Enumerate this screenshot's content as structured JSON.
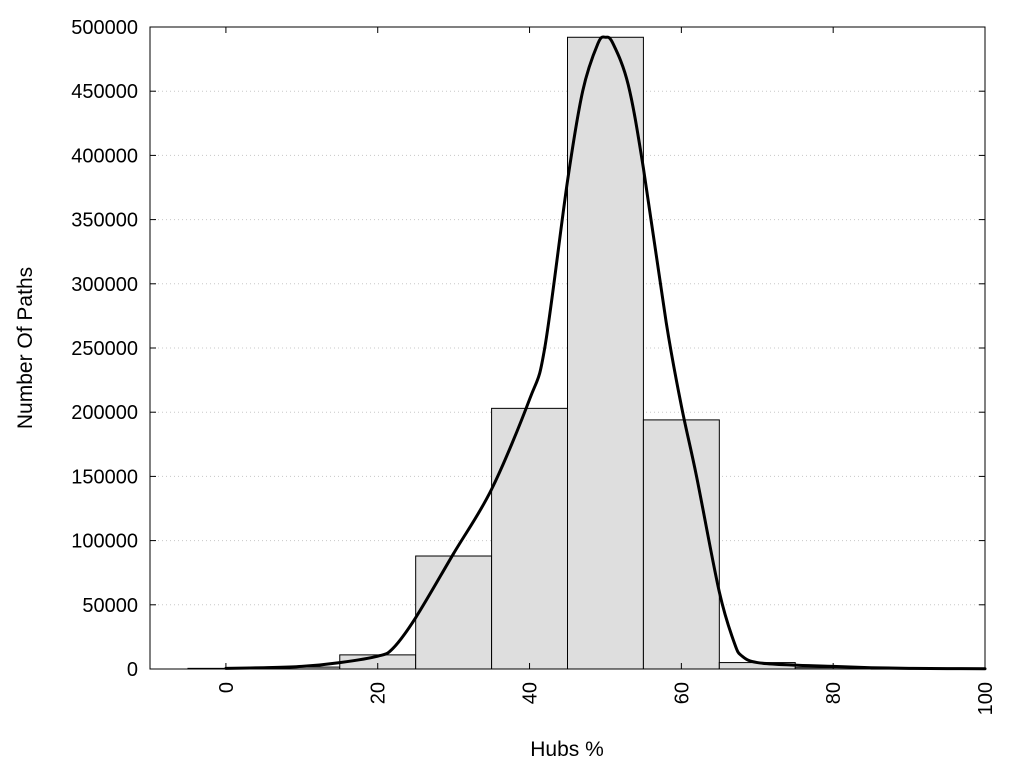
{
  "chart_data": {
    "type": "bar",
    "title": "",
    "xlabel": "Hubs %",
    "ylabel": "Number Of Paths",
    "xlim": [
      -10,
      100
    ],
    "ylim": [
      0,
      500000
    ],
    "x_ticks": [
      "0",
      "20",
      "40",
      "60",
      "80",
      "100"
    ],
    "y_ticks": [
      "0",
      "50000",
      "100000",
      "150000",
      "200000",
      "250000",
      "300000",
      "350000",
      "400000",
      "450000",
      "500000"
    ],
    "grid": "horizontal dotted",
    "bin_width": 10,
    "bars": [
      {
        "x": 0,
        "value": 500
      },
      {
        "x": 10,
        "value": 1500
      },
      {
        "x": 20,
        "value": 11000
      },
      {
        "x": 30,
        "value": 88000
      },
      {
        "x": 40,
        "value": 203000
      },
      {
        "x": 50,
        "value": 492000
      },
      {
        "x": 60,
        "value": 194000
      },
      {
        "x": 70,
        "value": 5000
      },
      {
        "x": 80,
        "value": 1000
      },
      {
        "x": 90,
        "value": 300
      }
    ],
    "curve": {
      "x": [
        0,
        5,
        10,
        15,
        20,
        22,
        25,
        30,
        35,
        40,
        42,
        45,
        47,
        49,
        50,
        51,
        53,
        55,
        58,
        60,
        62,
        65,
        67,
        68,
        70,
        75,
        80,
        85,
        90,
        95,
        100
      ],
      "y": [
        500,
        1000,
        2000,
        5000,
        10000,
        16000,
        40000,
        90000,
        140000,
        210000,
        250000,
        380000,
        450000,
        487000,
        492000,
        487000,
        455000,
        390000,
        270000,
        205000,
        150000,
        60000,
        20000,
        10000,
        5000,
        3000,
        2000,
        1000,
        500,
        300,
        200
      ]
    },
    "colors": {
      "bar_fill": "#dedede",
      "bar_stroke": "#000000",
      "curve": "#000000",
      "grid": "#c8c8c8"
    }
  }
}
